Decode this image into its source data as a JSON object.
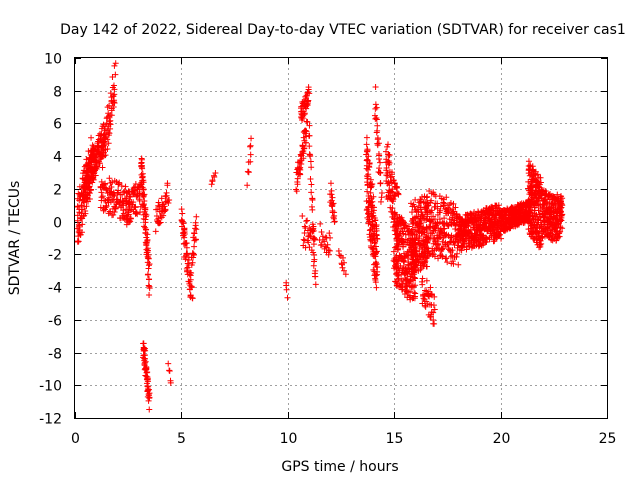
{
  "chart_data": {
    "type": "scatter",
    "title": "Day 142 of 2022, Sidereal Day-to-day VTEC variation (SDTVAR) for receiver cas1",
    "xlabel": "GPS time / hours",
    "ylabel": "SDTVAR / TECUs",
    "xlim": [
      0,
      25
    ],
    "ylim": [
      -12,
      10
    ],
    "xticks": [
      0,
      5,
      10,
      15,
      20,
      25
    ],
    "yticks": [
      -12,
      -10,
      -8,
      -6,
      -4,
      -2,
      0,
      2,
      4,
      6,
      8,
      10
    ],
    "grid": true,
    "marker": "+",
    "color": "#ff0000",
    "series": [
      {
        "name": "SDTVAR",
        "segments": [
          {
            "x": [
              0.1,
              0.9
            ],
            "y": [
              -0.2,
              4.2
            ],
            "spread": 3.2,
            "n": 120
          },
          {
            "x": [
              0.4,
              1.4
            ],
            "y": [
              2.0,
              5.3
            ],
            "spread": 2.0,
            "n": 150
          },
          {
            "x": [
              1.3,
              1.9
            ],
            "y": [
              4.0,
              8.6
            ],
            "spread": 2.5,
            "n": 60
          },
          {
            "x": [
              1.2,
              2.6
            ],
            "y": [
              1.8,
              1.0
            ],
            "spread": 2.2,
            "n": 120
          },
          {
            "x": [
              2.4,
              3.1
            ],
            "y": [
              0.8,
              1.6
            ],
            "spread": 2.0,
            "n": 60
          },
          {
            "x": [
              3.1,
              3.5
            ],
            "y": [
              3.5,
              -3.5
            ],
            "spread": 2.0,
            "n": 80
          },
          {
            "x": [
              3.2,
              3.5
            ],
            "y": [
              -7.5,
              -11.0
            ],
            "spread": 1.0,
            "n": 60
          },
          {
            "x": [
              3.8,
              4.4
            ],
            "y": [
              0.0,
              1.8
            ],
            "spread": 1.5,
            "n": 40
          },
          {
            "x": [
              4.4,
              4.5
            ],
            "y": [
              -8.8,
              -9.8
            ],
            "spread": 0.4,
            "n": 5
          },
          {
            "x": [
              5.0,
              5.5
            ],
            "y": [
              0.0,
              -4.3
            ],
            "spread": 1.8,
            "n": 60
          },
          {
            "x": [
              5.5,
              5.7
            ],
            "y": [
              -2.5,
              0.0
            ],
            "spread": 1.5,
            "n": 20
          },
          {
            "x": [
              6.4,
              6.6
            ],
            "y": [
              2.3,
              3.0
            ],
            "spread": 0.3,
            "n": 6
          },
          {
            "x": [
              8.1,
              8.3
            ],
            "y": [
              2.5,
              4.8
            ],
            "spread": 0.6,
            "n": 10
          },
          {
            "x": [
              9.9,
              10.0
            ],
            "y": [
              -3.8,
              -4.5
            ],
            "spread": 0.3,
            "n": 4
          },
          {
            "x": [
              10.4,
              10.9
            ],
            "y": [
              2.5,
              5.5
            ],
            "spread": 1.5,
            "n": 50
          },
          {
            "x": [
              10.6,
              11.0
            ],
            "y": [
              6.5,
              7.8
            ],
            "spread": 1.0,
            "n": 40
          },
          {
            "x": [
              10.7,
              11.3
            ],
            "y": [
              -0.5,
              -1.5
            ],
            "spread": 2.0,
            "n": 30
          },
          {
            "x": [
              11.0,
              11.3
            ],
            "y": [
              6.0,
              -4.2
            ],
            "spread": 1.0,
            "n": 30
          },
          {
            "x": [
              11.5,
              12.0
            ],
            "y": [
              -0.8,
              -1.5
            ],
            "spread": 1.5,
            "n": 20
          },
          {
            "x": [
              12.0,
              12.2
            ],
            "y": [
              2.0,
              0.0
            ],
            "spread": 1.2,
            "n": 20
          },
          {
            "x": [
              12.4,
              12.7
            ],
            "y": [
              -1.8,
              -3.0
            ],
            "spread": 0.8,
            "n": 10
          },
          {
            "x": [
              13.7,
              14.2
            ],
            "y": [
              3.0,
              -2.8
            ],
            "spread": 4.5,
            "n": 150
          },
          {
            "x": [
              14.1,
              14.4
            ],
            "y": [
              7.5,
              1.5
            ],
            "spread": 1.5,
            "n": 30
          },
          {
            "x": [
              14.6,
              15.2
            ],
            "y": [
              3.5,
              0.0
            ],
            "spread": 3.5,
            "n": 90
          },
          {
            "x": [
              15.0,
              16.0
            ],
            "y": [
              -1.5,
              -3.0
            ],
            "spread": 4.5,
            "n": 250
          },
          {
            "x": [
              15.8,
              16.6
            ],
            "y": [
              -1.0,
              -0.5
            ],
            "spread": 4.5,
            "n": 200
          },
          {
            "x": [
              16.3,
              16.9
            ],
            "y": [
              -4.0,
              -5.5
            ],
            "spread": 2.0,
            "n": 40
          },
          {
            "x": [
              16.5,
              18.0
            ],
            "y": [
              0.0,
              -0.8
            ],
            "spread": 4.0,
            "n": 220
          },
          {
            "x": [
              18.0,
              20.0
            ],
            "y": [
              -0.8,
              0.0
            ],
            "spread": 2.2,
            "n": 400
          },
          {
            "x": [
              20.0,
              21.4
            ],
            "y": [
              0.0,
              0.7
            ],
            "spread": 1.3,
            "n": 300
          },
          {
            "x": [
              21.3,
              21.9
            ],
            "y": [
              1.5,
              0.5
            ],
            "spread": 4.5,
            "n": 200
          },
          {
            "x": [
              21.9,
              22.9
            ],
            "y": [
              0.5,
              0.2
            ],
            "spread": 3.0,
            "n": 250
          }
        ]
      }
    ]
  }
}
